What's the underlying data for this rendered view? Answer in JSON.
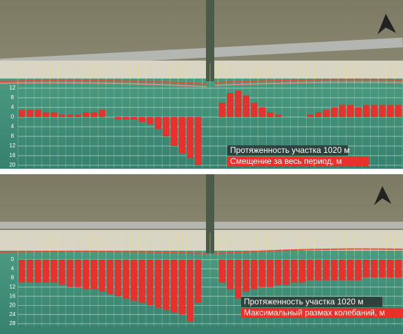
{
  "chart_data": [
    {
      "type": "bar",
      "annotations": [
        "Протяженность участка 1020 м"
      ],
      "series": [
        {
          "name": "Смещение за весь период, м",
          "color": "#e8302c",
          "values": [
            3,
            3,
            3,
            2,
            2,
            1,
            1,
            1,
            2,
            2,
            3,
            0,
            -1,
            -1,
            -1,
            -2,
            -3,
            -5,
            -8,
            -12,
            -15,
            -17,
            -20,
            null,
            null,
            6,
            10,
            11,
            9,
            6,
            4,
            2,
            1,
            0,
            0,
            0,
            1,
            2,
            3,
            4,
            5,
            5,
            4,
            5,
            5,
            5,
            5,
            5
          ]
        }
      ],
      "ylim": [
        -20,
        12
      ],
      "yticks": [
        {
          "value": -20,
          "label": "20"
        },
        {
          "value": -16,
          "label": "16"
        },
        {
          "value": -12,
          "label": "12"
        },
        {
          "value": -8,
          "label": "8"
        },
        {
          "value": -4,
          "label": "4"
        },
        0,
        4,
        8,
        12
      ],
      "grid": true
    },
    {
      "type": "bar",
      "annotations": [
        "Протяженность участка 1020 м"
      ],
      "series": [
        {
          "name": "Максимальный размах колебаний, м",
          "color": "#e8302c",
          "values": [
            10,
            10,
            10,
            10,
            10,
            11,
            12,
            12,
            13,
            13,
            14,
            15,
            16,
            17,
            18,
            19,
            20,
            21,
            22,
            23,
            24,
            27,
            19,
            null,
            null,
            10,
            13,
            17,
            14,
            13,
            12,
            12,
            11,
            11,
            10,
            10,
            9,
            9,
            9,
            9,
            9,
            9,
            9,
            8,
            8,
            8,
            8,
            8
          ]
        }
      ],
      "ylim": [
        28,
        0
      ],
      "yticks": [
        0,
        4,
        8,
        12,
        16,
        20,
        24,
        28
      ],
      "grid": true
    }
  ]
}
